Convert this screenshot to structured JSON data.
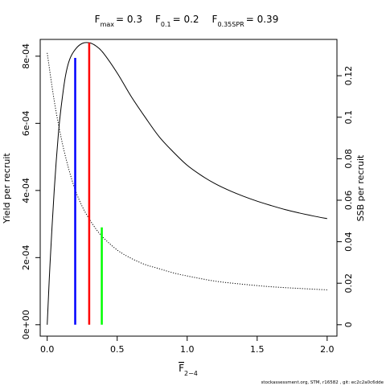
{
  "chart_data": {
    "type": "line",
    "title_parts": [
      {
        "sym": "F",
        "sub": "max",
        "eq": "= 0.3"
      },
      {
        "sym": "F",
        "sub": "0.1",
        "eq": "= 0.2"
      },
      {
        "sym": "F",
        "sub": "0.35SPR",
        "eq": "= 0.39"
      }
    ],
    "xlabel": "F",
    "xlabel_sub": "2−4",
    "ylabel": "Yield per recruit",
    "y2label": "SSB per recruit",
    "xlim": [
      -0.05,
      2.07
    ],
    "ylim": [
      -3.4e-05,
      0.00085
    ],
    "y2lim": [
      -0.0055,
      0.1375
    ],
    "x_ticks": [
      0,
      0.5,
      1.0,
      1.5,
      2.0
    ],
    "x_tick_labels": [
      "0.0",
      "0.5",
      "1.0",
      "1.5",
      "2.0"
    ],
    "y_ticks": [
      0,
      0.0002,
      0.0004,
      0.0006,
      0.0008
    ],
    "y_tick_labels": [
      "0e+00",
      "2e-04",
      "4e-04",
      "6e-04",
      "8e-04"
    ],
    "y2_ticks": [
      0,
      0.02,
      0.04,
      0.06,
      0.08,
      0.1,
      0.12
    ],
    "y2_tick_labels": [
      "0",
      "0.02",
      "0.04",
      "0.06",
      "0.08",
      "0.1",
      "0.12"
    ],
    "grid": false,
    "series": [
      {
        "role": "yield per recruit",
        "axis": "left",
        "style": "solid",
        "color": "#000000",
        "x": [
          0,
          0.02,
          0.05,
          0.08,
          0.1,
          0.13,
          0.16,
          0.2,
          0.25,
          0.3,
          0.35,
          0.4,
          0.5,
          0.6,
          0.7,
          0.8,
          0.9,
          1.0,
          1.1,
          1.2,
          1.3,
          1.4,
          1.5,
          1.6,
          1.7,
          1.8,
          1.9,
          2.0
        ],
        "y": [
          0,
          0.00018,
          0.0004,
          0.00057,
          0.00065,
          0.00074,
          0.00079,
          0.00082,
          0.000838,
          0.00084,
          0.00083,
          0.00081,
          0.00075,
          0.00068,
          0.000618,
          0.00056,
          0.000515,
          0.000475,
          0.000445,
          0.00042,
          0.0004,
          0.000383,
          0.000368,
          0.000355,
          0.000343,
          0.000333,
          0.000324,
          0.000316
        ]
      },
      {
        "role": "SSB per recruit",
        "axis": "right",
        "style": "dotted",
        "color": "#000000",
        "x": [
          0,
          0.05,
          0.1,
          0.15,
          0.2,
          0.25,
          0.3,
          0.35,
          0.4,
          0.5,
          0.6,
          0.7,
          0.8,
          0.9,
          1.0,
          1.2,
          1.4,
          1.6,
          1.8,
          2.0
        ],
        "y": [
          0.131,
          0.108,
          0.09,
          0.076,
          0.065,
          0.057,
          0.051,
          0.046,
          0.042,
          0.036,
          0.032,
          0.029,
          0.027,
          0.025,
          0.0235,
          0.021,
          0.0195,
          0.0183,
          0.0175,
          0.0168
        ]
      }
    ],
    "reference_lines": [
      {
        "x": 0.2,
        "y_top": 0.000795,
        "axis": "left",
        "color": "#0000ff"
      },
      {
        "x": 0.3,
        "y_top": 0.00084,
        "axis": "left",
        "color": "#ff0000"
      },
      {
        "x": 0.39,
        "y_top": 0.00029,
        "axis": "left",
        "color": "#00ff00"
      }
    ],
    "footer_note": "stockassessment.org, STM, r16582 , git: ec2c2a0c6dde"
  }
}
